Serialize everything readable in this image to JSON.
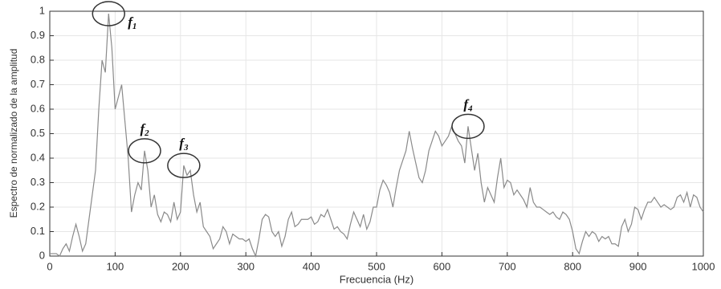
{
  "chart_data": {
    "type": "line",
    "xlabel": "Frecuencia (Hz)",
    "ylabel": "Espectro de normalizado de la amplitud",
    "x": [
      0,
      5,
      10,
      15,
      20,
      25,
      30,
      35,
      40,
      45,
      50,
      55,
      60,
      65,
      70,
      75,
      80,
      85,
      90,
      95,
      100,
      105,
      110,
      115,
      120,
      125,
      130,
      135,
      140,
      145,
      150,
      155,
      160,
      165,
      170,
      175,
      180,
      185,
      190,
      195,
      200,
      205,
      210,
      215,
      220,
      225,
      230,
      235,
      240,
      245,
      250,
      255,
      260,
      265,
      270,
      275,
      280,
      285,
      290,
      295,
      300,
      305,
      310,
      315,
      320,
      325,
      330,
      335,
      340,
      345,
      350,
      355,
      360,
      365,
      370,
      375,
      380,
      385,
      390,
      395,
      400,
      405,
      410,
      415,
      420,
      425,
      430,
      435,
      440,
      445,
      450,
      455,
      460,
      465,
      470,
      475,
      480,
      485,
      490,
      495,
      500,
      505,
      510,
      515,
      520,
      525,
      530,
      535,
      540,
      545,
      550,
      555,
      560,
      565,
      570,
      575,
      580,
      585,
      590,
      595,
      600,
      605,
      610,
      615,
      620,
      625,
      630,
      635,
      640,
      645,
      650,
      655,
      660,
      665,
      670,
      675,
      680,
      685,
      690,
      695,
      700,
      705,
      710,
      715,
      720,
      725,
      730,
      735,
      740,
      745,
      750,
      755,
      760,
      765,
      770,
      775,
      780,
      785,
      790,
      795,
      800,
      805,
      810,
      815,
      820,
      825,
      830,
      835,
      840,
      845,
      850,
      855,
      860,
      865,
      870,
      875,
      880,
      885,
      890,
      895,
      900,
      905,
      910,
      915,
      920,
      925,
      930,
      935,
      940,
      945,
      950,
      955,
      960,
      965,
      970,
      975,
      980,
      985,
      990,
      995,
      1000
    ],
    "series": [
      {
        "name": "Espectro",
        "color": "#8a8a8a",
        "values": [
          0.01,
          0.01,
          0.01,
          0.0,
          0.03,
          0.05,
          0.02,
          0.08,
          0.13,
          0.08,
          0.02,
          0.05,
          0.15,
          0.25,
          0.35,
          0.6,
          0.8,
          0.75,
          0.99,
          0.85,
          0.6,
          0.65,
          0.7,
          0.55,
          0.4,
          0.18,
          0.25,
          0.3,
          0.27,
          0.43,
          0.35,
          0.2,
          0.25,
          0.17,
          0.14,
          0.18,
          0.17,
          0.14,
          0.22,
          0.15,
          0.18,
          0.37,
          0.33,
          0.35,
          0.25,
          0.18,
          0.22,
          0.12,
          0.1,
          0.08,
          0.03,
          0.05,
          0.07,
          0.12,
          0.1,
          0.05,
          0.09,
          0.08,
          0.07,
          0.07,
          0.06,
          0.07,
          0.03,
          0.0,
          0.07,
          0.15,
          0.17,
          0.16,
          0.1,
          0.08,
          0.1,
          0.04,
          0.08,
          0.15,
          0.18,
          0.12,
          0.13,
          0.15,
          0.15,
          0.15,
          0.16,
          0.13,
          0.14,
          0.17,
          0.16,
          0.19,
          0.15,
          0.11,
          0.12,
          0.1,
          0.09,
          0.07,
          0.13,
          0.18,
          0.15,
          0.12,
          0.17,
          0.11,
          0.14,
          0.2,
          0.2,
          0.27,
          0.31,
          0.29,
          0.26,
          0.2,
          0.28,
          0.35,
          0.39,
          0.43,
          0.51,
          0.44,
          0.38,
          0.32,
          0.3,
          0.35,
          0.43,
          0.47,
          0.51,
          0.49,
          0.45,
          0.47,
          0.49,
          0.53,
          0.5,
          0.47,
          0.45,
          0.38,
          0.53,
          0.44,
          0.35,
          0.42,
          0.3,
          0.22,
          0.28,
          0.25,
          0.22,
          0.32,
          0.4,
          0.28,
          0.31,
          0.3,
          0.25,
          0.27,
          0.25,
          0.23,
          0.2,
          0.28,
          0.22,
          0.2,
          0.2,
          0.19,
          0.18,
          0.17,
          0.18,
          0.16,
          0.15,
          0.18,
          0.17,
          0.15,
          0.1,
          0.03,
          0.01,
          0.06,
          0.1,
          0.08,
          0.1,
          0.09,
          0.06,
          0.08,
          0.07,
          0.08,
          0.05,
          0.05,
          0.04,
          0.12,
          0.15,
          0.1,
          0.13,
          0.2,
          0.19,
          0.15,
          0.19,
          0.22,
          0.22,
          0.24,
          0.22,
          0.2,
          0.21,
          0.2,
          0.19,
          0.2,
          0.24,
          0.25,
          0.22,
          0.26,
          0.2,
          0.25,
          0.24,
          0.2,
          0.18
        ]
      }
    ],
    "xlim": [
      0,
      1000
    ],
    "xticks": [
      0,
      100,
      200,
      300,
      400,
      500,
      600,
      700,
      800,
      900,
      1000
    ],
    "ylim": [
      0,
      1
    ],
    "yticks": [
      0,
      0.1,
      0.2,
      0.3,
      0.4,
      0.5,
      0.6,
      0.7,
      0.8,
      0.9,
      1
    ],
    "grid": true,
    "annotations": [
      {
        "text": "f",
        "sub": "1",
        "x": 90,
        "y": 0.99
      },
      {
        "text": "f",
        "sub": "2",
        "x": 145,
        "y": 0.43
      },
      {
        "text": "f",
        "sub": "3",
        "x": 205,
        "y": 0.37
      },
      {
        "text": "f",
        "sub": "4",
        "x": 640,
        "y": 0.53
      }
    ]
  }
}
